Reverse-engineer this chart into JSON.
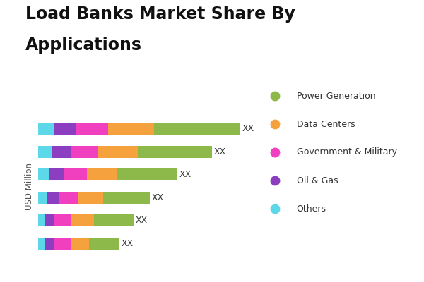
{
  "title_line1": "Load Banks Market Share By",
  "title_line2": "Applications",
  "title_fontsize": 17,
  "ylabel": "USD Million",
  "segments": {
    "Others": {
      "color": "#5DD8E8",
      "values": [
        7,
        6,
        5,
        4,
        3,
        3
      ]
    },
    "Oil & Gas": {
      "color": "#8B3EBF",
      "values": [
        9,
        8,
        6,
        5,
        4,
        4
      ]
    },
    "Government & Military": {
      "color": "#F040C0",
      "values": [
        14,
        12,
        10,
        8,
        7,
        7
      ]
    },
    "Data Centers": {
      "color": "#F5A23E",
      "values": [
        20,
        17,
        13,
        11,
        10,
        8
      ]
    },
    "Power Generation": {
      "color": "#8DB84A",
      "values": [
        37,
        32,
        26,
        20,
        17,
        13
      ]
    }
  },
  "legend_order": [
    "Power Generation",
    "Data Centers",
    "Government & Military",
    "Oil & Gas",
    "Others"
  ],
  "xx_label": "XX",
  "background_color": "#ffffff",
  "bar_height": 0.52,
  "num_bars": 6
}
